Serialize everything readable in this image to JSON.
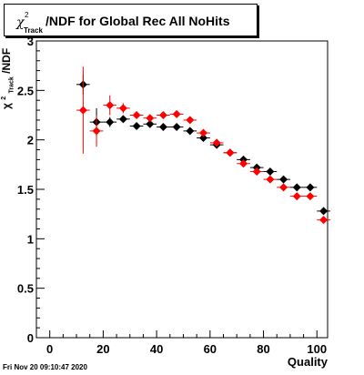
{
  "chart_data": {
    "type": "scatter",
    "title": "/NDF for Global Rec All NoHits",
    "title_symbol": "χ",
    "title_sup": "2",
    "title_sub": "Track",
    "ylabel": "/NDF",
    "xlabel": "Quality",
    "xlim": [
      -5,
      104
    ],
    "ylim": [
      0,
      3
    ],
    "x_ticks": [
      "0",
      "20",
      "40",
      "60",
      "80",
      "100"
    ],
    "y_ticks": [
      "0",
      "0.5",
      "1",
      "1.5",
      "2",
      "2.5",
      "3"
    ],
    "grid": false,
    "series": [
      {
        "color": "#000000",
        "x": [
          12.5,
          17.5,
          22.5,
          27.5,
          32.5,
          37.5,
          42.5,
          47.5,
          52.5,
          57.5,
          62.5,
          67.5,
          72.5,
          77.5,
          82.5,
          87.5,
          92.5,
          97.5,
          102.5
        ],
        "y": [
          2.56,
          2.18,
          2.18,
          2.21,
          2.14,
          2.16,
          2.13,
          2.13,
          2.09,
          2.02,
          1.95,
          1.87,
          1.8,
          1.72,
          1.68,
          1.6,
          1.52,
          1.52,
          1.28
        ],
        "yerr": [
          0.1,
          0.14,
          0.05,
          0.03,
          0.02,
          0.02,
          0.02,
          0.02,
          0.02,
          0.02,
          0.02,
          0.02,
          0.02,
          0.02,
          0.02,
          0.02,
          0.02,
          0.02,
          0.02
        ]
      },
      {
        "color": "#ff0000",
        "x": [
          12.5,
          17.5,
          22.5,
          27.5,
          32.5,
          37.5,
          42.5,
          47.5,
          52.5,
          57.5,
          62.5,
          67.5,
          72.5,
          77.5,
          82.5,
          87.5,
          92.5,
          97.5,
          102.5
        ],
        "y": [
          2.3,
          2.09,
          2.35,
          2.32,
          2.25,
          2.22,
          2.25,
          2.26,
          2.2,
          2.07,
          1.97,
          1.87,
          1.76,
          1.68,
          1.6,
          1.52,
          1.43,
          1.43,
          1.19
        ],
        "yerr": [
          0.44,
          0.16,
          0.1,
          0.05,
          0.03,
          0.03,
          0.03,
          0.03,
          0.03,
          0.03,
          0.02,
          0.02,
          0.02,
          0.02,
          0.02,
          0.02,
          0.02,
          0.02,
          0.02
        ]
      }
    ]
  },
  "footer": {
    "timestamp": "Fri Nov 20 09:10:47 2020"
  }
}
